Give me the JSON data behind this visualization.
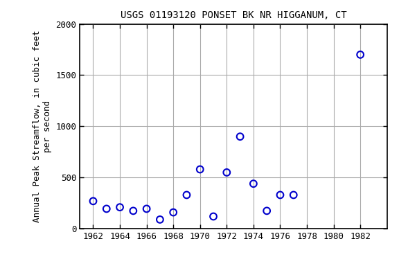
{
  "title": "USGS 01193120 PONSET BK NR HIGGANUM, CT",
  "ylabel_line1": "Annual Peak Streamflow, in cubic feet",
  "ylabel_line2": "per second",
  "years": [
    1962,
    1963,
    1964,
    1965,
    1966,
    1967,
    1968,
    1969,
    1970,
    1971,
    1972,
    1973,
    1974,
    1975,
    1976,
    1977,
    1982
  ],
  "flows": [
    270,
    195,
    210,
    175,
    195,
    90,
    160,
    330,
    580,
    120,
    550,
    900,
    440,
    175,
    330,
    330,
    1700
  ],
  "xlim": [
    1961,
    1984
  ],
  "ylim": [
    0,
    2000
  ],
  "xticks": [
    1962,
    1964,
    1966,
    1968,
    1970,
    1972,
    1974,
    1976,
    1978,
    1980,
    1982
  ],
  "yticks": [
    0,
    500,
    1000,
    1500,
    2000
  ],
  "marker_color": "#0000cc",
  "marker_edgewidth": 1.5,
  "marker_size": 7,
  "grid_color": "#aaaaaa",
  "bg_color": "#ffffff",
  "title_fontsize": 10,
  "label_fontsize": 9,
  "tick_fontsize": 9
}
